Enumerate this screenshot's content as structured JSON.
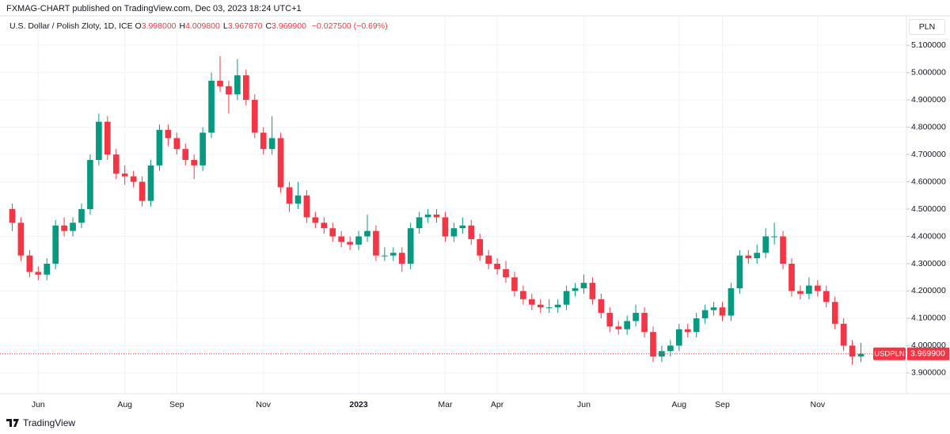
{
  "chart_data": {
    "type": "candlestick",
    "published": "FXMAG-CHART published on TradingView.com, Dec 03, 2023 18:24 UTC+1",
    "header": {
      "symbol": "U.S. Dollar / Polish Zloty, 1D, ICE",
      "fields": [
        {
          "key": "O",
          "value": "3.998000"
        },
        {
          "key": "H",
          "value": "4.009800"
        },
        {
          "key": "L",
          "value": "3.967870"
        },
        {
          "key": "C",
          "value": "3.969900"
        }
      ],
      "change": "−0.027500 (−0.69%)"
    },
    "currency": "PLN",
    "ticker": "USDPLN",
    "last_price": {
      "value": 3.9699,
      "label": "3.969900"
    },
    "footer": "TradingView",
    "up_color": "#089981",
    "down_color": "#f23645",
    "grid": true,
    "ylim": [
      3.833,
      5.202
    ],
    "yticks": [
      {
        "value": 3.9,
        "label": "3.900000"
      },
      {
        "value": 4.0,
        "label": "4.000000"
      },
      {
        "value": 4.1,
        "label": "4.100000"
      },
      {
        "value": 4.2,
        "label": "4.200000"
      },
      {
        "value": 4.3,
        "label": "4.300000"
      },
      {
        "value": 4.4,
        "label": "4.400000"
      },
      {
        "value": 4.5,
        "label": "4.500000"
      },
      {
        "value": 4.6,
        "label": "4.600000"
      },
      {
        "value": 4.7,
        "label": "4.700000"
      },
      {
        "value": 4.8,
        "label": "4.800000"
      },
      {
        "value": 4.9,
        "label": "4.900000"
      },
      {
        "value": 5.0,
        "label": "5.000000"
      },
      {
        "value": 5.1,
        "label": "5.100000"
      }
    ],
    "categories": [
      null,
      null,
      null,
      "Jun",
      null,
      null,
      null,
      null,
      null,
      null,
      null,
      null,
      null,
      "Aug",
      null,
      null,
      null,
      null,
      null,
      "Sep",
      null,
      null,
      null,
      null,
      null,
      null,
      null,
      null,
      null,
      "Nov",
      null,
      null,
      null,
      null,
      null,
      null,
      null,
      null,
      null,
      null,
      "2023",
      null,
      null,
      null,
      null,
      null,
      null,
      null,
      null,
      null,
      "Mar",
      null,
      null,
      null,
      null,
      null,
      "Apr",
      null,
      null,
      null,
      null,
      null,
      null,
      null,
      null,
      null,
      "Jun",
      null,
      null,
      null,
      null,
      null,
      null,
      null,
      null,
      null,
      null,
      "Aug",
      null,
      null,
      null,
      null,
      "Sep",
      null,
      null,
      null,
      null,
      null,
      null,
      null,
      null,
      null,
      null,
      "Nov",
      null,
      null,
      null,
      null,
      null
    ],
    "ohlc": [
      [
        4.5,
        4.52,
        4.42,
        4.45
      ],
      [
        4.45,
        4.47,
        4.31,
        4.33
      ],
      [
        4.33,
        4.35,
        4.25,
        4.27
      ],
      [
        4.27,
        4.29,
        4.24,
        4.26
      ],
      [
        4.26,
        4.32,
        4.24,
        4.3
      ],
      [
        4.3,
        4.46,
        4.28,
        4.44
      ],
      [
        4.44,
        4.47,
        4.4,
        4.42
      ],
      [
        4.42,
        4.47,
        4.4,
        4.45
      ],
      [
        4.45,
        4.52,
        4.43,
        4.5
      ],
      [
        4.5,
        4.7,
        4.48,
        4.68
      ],
      [
        4.68,
        4.85,
        4.66,
        4.82
      ],
      [
        4.82,
        4.84,
        4.68,
        4.7
      ],
      [
        4.7,
        4.72,
        4.61,
        4.63
      ],
      [
        4.63,
        4.66,
        4.59,
        4.62
      ],
      [
        4.62,
        4.64,
        4.58,
        4.6
      ],
      [
        4.6,
        4.62,
        4.51,
        4.53
      ],
      [
        4.53,
        4.68,
        4.51,
        4.66
      ],
      [
        4.66,
        4.81,
        4.64,
        4.79
      ],
      [
        4.79,
        4.81,
        4.73,
        4.76
      ],
      [
        4.76,
        4.78,
        4.7,
        4.72
      ],
      [
        4.72,
        4.74,
        4.66,
        4.68
      ],
      [
        4.68,
        4.7,
        4.61,
        4.66
      ],
      [
        4.66,
        4.8,
        4.64,
        4.78
      ],
      [
        4.78,
        5.0,
        4.76,
        4.97
      ],
      [
        4.97,
        5.06,
        4.93,
        4.95
      ],
      [
        4.95,
        4.97,
        4.85,
        4.92
      ],
      [
        4.92,
        5.05,
        4.9,
        4.99
      ],
      [
        4.99,
        5.01,
        4.88,
        4.9
      ],
      [
        4.9,
        4.92,
        4.76,
        4.78
      ],
      [
        4.78,
        4.8,
        4.7,
        4.72
      ],
      [
        4.72,
        4.84,
        4.7,
        4.76
      ],
      [
        4.76,
        4.78,
        4.56,
        4.58
      ],
      [
        4.58,
        4.6,
        4.49,
        4.52
      ],
      [
        4.52,
        4.6,
        4.5,
        4.55
      ],
      [
        4.55,
        4.57,
        4.45,
        4.47
      ],
      [
        4.47,
        4.49,
        4.43,
        4.45
      ],
      [
        4.45,
        4.47,
        4.41,
        4.43
      ],
      [
        4.43,
        4.45,
        4.38,
        4.4
      ],
      [
        4.4,
        4.42,
        4.36,
        4.38
      ],
      [
        4.38,
        4.4,
        4.35,
        4.37
      ],
      [
        4.37,
        4.42,
        4.35,
        4.4
      ],
      [
        4.4,
        4.48,
        4.38,
        4.42
      ],
      [
        4.42,
        4.44,
        4.31,
        4.33
      ],
      [
        4.33,
        4.36,
        4.31,
        4.33
      ],
      [
        4.33,
        4.36,
        4.31,
        4.34
      ],
      [
        4.34,
        4.36,
        4.27,
        4.3
      ],
      [
        4.3,
        4.45,
        4.28,
        4.43
      ],
      [
        4.43,
        4.49,
        4.41,
        4.47
      ],
      [
        4.47,
        4.5,
        4.45,
        4.48
      ],
      [
        4.48,
        4.5,
        4.45,
        4.47
      ],
      [
        4.47,
        4.49,
        4.38,
        4.4
      ],
      [
        4.4,
        4.45,
        4.38,
        4.43
      ],
      [
        4.43,
        4.47,
        4.41,
        4.44
      ],
      [
        4.44,
        4.46,
        4.37,
        4.39
      ],
      [
        4.39,
        4.41,
        4.31,
        4.33
      ],
      [
        4.33,
        4.35,
        4.28,
        4.3
      ],
      [
        4.3,
        4.32,
        4.26,
        4.28
      ],
      [
        4.28,
        4.31,
        4.23,
        4.25
      ],
      [
        4.25,
        4.27,
        4.18,
        4.2
      ],
      [
        4.2,
        4.22,
        4.15,
        4.17
      ],
      [
        4.17,
        4.19,
        4.13,
        4.15
      ],
      [
        4.15,
        4.17,
        4.12,
        4.14
      ],
      [
        4.14,
        4.17,
        4.12,
        4.14
      ],
      [
        4.14,
        4.17,
        4.12,
        4.15
      ],
      [
        4.15,
        4.22,
        4.13,
        4.2
      ],
      [
        4.2,
        4.23,
        4.18,
        4.21
      ],
      [
        4.21,
        4.26,
        4.19,
        4.23
      ],
      [
        4.23,
        4.25,
        4.15,
        4.17
      ],
      [
        4.17,
        4.19,
        4.1,
        4.12
      ],
      [
        4.12,
        4.14,
        4.05,
        4.07
      ],
      [
        4.07,
        4.09,
        4.04,
        4.06
      ],
      [
        4.06,
        4.11,
        4.04,
        4.09
      ],
      [
        4.09,
        4.15,
        4.07,
        4.12
      ],
      [
        4.12,
        4.14,
        4.03,
        4.05
      ],
      [
        4.05,
        4.07,
        3.94,
        3.96
      ],
      [
        3.96,
        4.0,
        3.94,
        3.98
      ],
      [
        3.98,
        4.02,
        3.96,
        4.0
      ],
      [
        4.0,
        4.08,
        3.98,
        4.06
      ],
      [
        4.06,
        4.08,
        4.03,
        4.05
      ],
      [
        4.05,
        4.12,
        4.03,
        4.1
      ],
      [
        4.1,
        4.15,
        4.08,
        4.13
      ],
      [
        4.13,
        4.16,
        4.11,
        4.14
      ],
      [
        4.14,
        4.16,
        4.09,
        4.11
      ],
      [
        4.11,
        4.23,
        4.09,
        4.21
      ],
      [
        4.21,
        4.35,
        4.19,
        4.33
      ],
      [
        4.33,
        4.35,
        4.3,
        4.32
      ],
      [
        4.32,
        4.37,
        4.3,
        4.34
      ],
      [
        4.34,
        4.43,
        4.32,
        4.4
      ],
      [
        4.4,
        4.45,
        4.37,
        4.4
      ],
      [
        4.4,
        4.42,
        4.28,
        4.3
      ],
      [
        4.3,
        4.32,
        4.18,
        4.2
      ],
      [
        4.2,
        4.22,
        4.17,
        4.19
      ],
      [
        4.19,
        4.25,
        4.17,
        4.22
      ],
      [
        4.22,
        4.24,
        4.18,
        4.2
      ],
      [
        4.2,
        4.22,
        4.14,
        4.16
      ],
      [
        4.16,
        4.18,
        4.06,
        4.08
      ],
      [
        4.08,
        4.1,
        3.98,
        4.0
      ],
      [
        4.0,
        4.02,
        3.93,
        3.96
      ],
      [
        3.96,
        4.01,
        3.94,
        3.97
      ]
    ]
  }
}
